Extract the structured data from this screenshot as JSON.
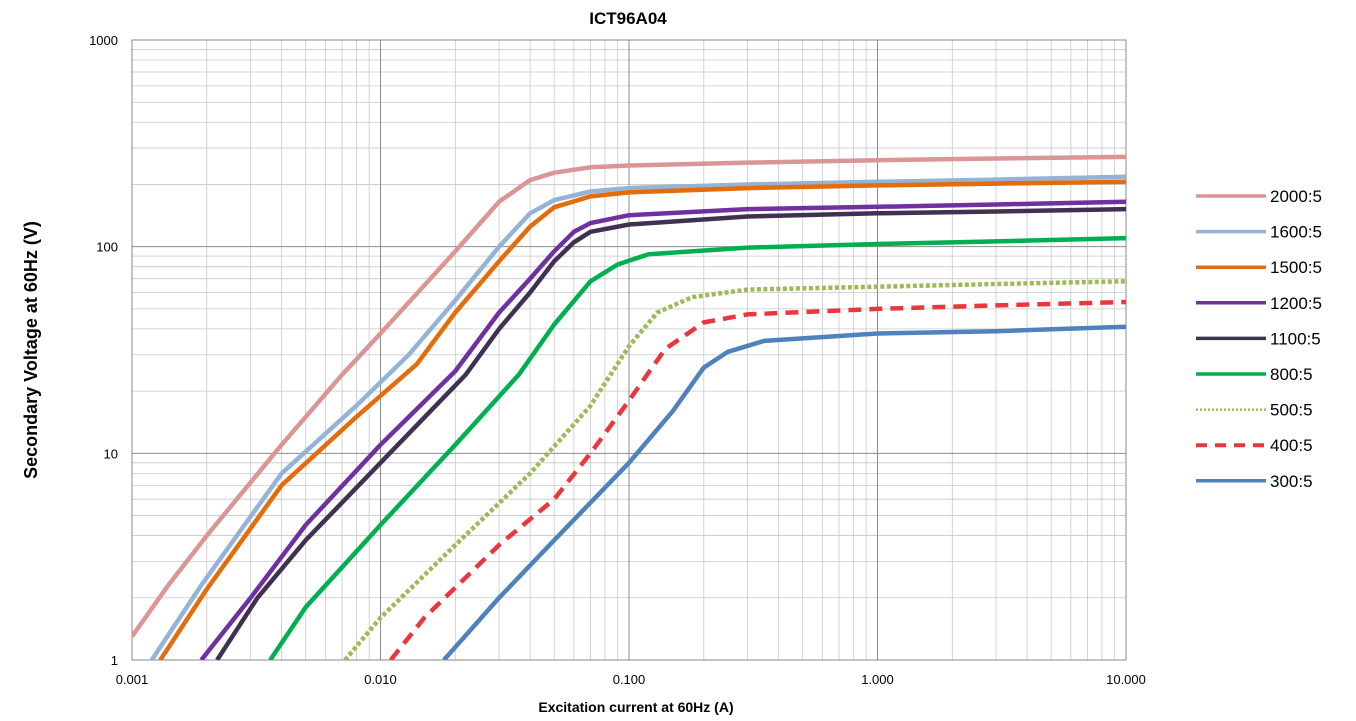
{
  "chart_data": {
    "type": "line",
    "title": "ICT96A04",
    "xlabel": "Excitation current at 60Hz (A)",
    "ylabel": "Secondary Voltage at 60Hz (V)",
    "x_scale": "log",
    "y_scale": "log",
    "xlim": [
      0.001,
      10
    ],
    "ylim": [
      1,
      1000
    ],
    "x_tick_labels": [
      "0.001",
      "0.010",
      "0.100",
      "1.000",
      "10.000"
    ],
    "x_tick_values": [
      0.001,
      0.01,
      0.1,
      1,
      10
    ],
    "y_tick_labels": [
      "1",
      "10",
      "100",
      "1000"
    ],
    "y_tick_values": [
      1,
      10,
      100,
      1000
    ],
    "grid": true,
    "legend_position": "right",
    "series": [
      {
        "name": "2000:5",
        "color": "#D99694",
        "dash": "solid",
        "points": [
          [
            0.001,
            1.3
          ],
          [
            0.0014,
            2.3
          ],
          [
            0.002,
            4.0
          ],
          [
            0.004,
            11
          ],
          [
            0.007,
            24
          ],
          [
            0.01,
            38
          ],
          [
            0.02,
            95
          ],
          [
            0.03,
            165
          ],
          [
            0.04,
            210
          ],
          [
            0.05,
            228
          ],
          [
            0.07,
            242
          ],
          [
            0.1,
            247
          ],
          [
            0.3,
            255
          ],
          [
            1,
            262
          ],
          [
            3,
            267
          ],
          [
            10,
            272
          ]
        ]
      },
      {
        "name": "1600:5",
        "color": "#95B3D7",
        "dash": "solid",
        "points": [
          [
            0.0012,
            1.0
          ],
          [
            0.0019,
            2.3
          ],
          [
            0.004,
            8
          ],
          [
            0.008,
            17
          ],
          [
            0.013,
            30
          ],
          [
            0.02,
            55
          ],
          [
            0.03,
            100
          ],
          [
            0.04,
            145
          ],
          [
            0.05,
            168
          ],
          [
            0.07,
            185
          ],
          [
            0.1,
            192
          ],
          [
            0.3,
            200
          ],
          [
            1,
            206
          ],
          [
            3,
            211
          ],
          [
            10,
            218
          ]
        ]
      },
      {
        "name": "1500:5",
        "color": "#E46C0A",
        "dash": "solid",
        "points": [
          [
            0.0013,
            1.0
          ],
          [
            0.002,
            2.2
          ],
          [
            0.004,
            7
          ],
          [
            0.008,
            15
          ],
          [
            0.014,
            27
          ],
          [
            0.02,
            48
          ],
          [
            0.03,
            85
          ],
          [
            0.04,
            125
          ],
          [
            0.05,
            155
          ],
          [
            0.07,
            175
          ],
          [
            0.1,
            183
          ],
          [
            0.3,
            192
          ],
          [
            1,
            198
          ],
          [
            3,
            202
          ],
          [
            10,
            206
          ]
        ]
      },
      {
        "name": "1200:5",
        "color": "#7030A0",
        "dash": "solid",
        "points": [
          [
            0.0019,
            1.0
          ],
          [
            0.003,
            2.0
          ],
          [
            0.005,
            4.5
          ],
          [
            0.01,
            11
          ],
          [
            0.02,
            25
          ],
          [
            0.03,
            48
          ],
          [
            0.04,
            70
          ],
          [
            0.05,
            95
          ],
          [
            0.06,
            118
          ],
          [
            0.07,
            130
          ],
          [
            0.1,
            142
          ],
          [
            0.3,
            152
          ],
          [
            1,
            156
          ],
          [
            3,
            160
          ],
          [
            10,
            165
          ]
        ]
      },
      {
        "name": "1100:5",
        "color": "#403151",
        "dash": "solid",
        "points": [
          [
            0.0022,
            1.0
          ],
          [
            0.0032,
            2.0
          ],
          [
            0.005,
            3.8
          ],
          [
            0.01,
            9
          ],
          [
            0.022,
            24
          ],
          [
            0.03,
            40
          ],
          [
            0.04,
            60
          ],
          [
            0.05,
            85
          ],
          [
            0.06,
            105
          ],
          [
            0.07,
            118
          ],
          [
            0.1,
            128
          ],
          [
            0.3,
            140
          ],
          [
            1,
            145
          ],
          [
            3,
            148
          ],
          [
            10,
            152
          ]
        ]
      },
      {
        "name": "800:5",
        "color": "#00B050",
        "dash": "solid",
        "points": [
          [
            0.0036,
            1.0
          ],
          [
            0.005,
            1.8
          ],
          [
            0.01,
            4.5
          ],
          [
            0.02,
            11
          ],
          [
            0.036,
            24
          ],
          [
            0.05,
            42
          ],
          [
            0.07,
            68
          ],
          [
            0.09,
            82
          ],
          [
            0.12,
            92
          ],
          [
            0.3,
            99
          ],
          [
            1,
            103
          ],
          [
            3,
            106
          ],
          [
            10,
            110
          ]
        ]
      },
      {
        "name": "500:5",
        "color": "#9BBB59",
        "dash": "dotted",
        "points": [
          [
            0.0072,
            1.0
          ],
          [
            0.01,
            1.6
          ],
          [
            0.02,
            3.6
          ],
          [
            0.04,
            8
          ],
          [
            0.07,
            17
          ],
          [
            0.1,
            33
          ],
          [
            0.13,
            48
          ],
          [
            0.18,
            57
          ],
          [
            0.3,
            62
          ],
          [
            1,
            64
          ],
          [
            3,
            66
          ],
          [
            10,
            68
          ]
        ]
      },
      {
        "name": "400:5",
        "color": "#E8383D",
        "dash": "dashed",
        "points": [
          [
            0.011,
            1.0
          ],
          [
            0.015,
            1.6
          ],
          [
            0.03,
            3.6
          ],
          [
            0.05,
            6
          ],
          [
            0.07,
            10
          ],
          [
            0.1,
            18
          ],
          [
            0.14,
            32
          ],
          [
            0.2,
            43
          ],
          [
            0.3,
            47
          ],
          [
            1,
            50
          ],
          [
            3,
            52
          ],
          [
            10,
            54
          ]
        ]
      },
      {
        "name": "300:5",
        "color": "#4F81BD",
        "dash": "solid",
        "points": [
          [
            0.018,
            1.0
          ],
          [
            0.03,
            2.0
          ],
          [
            0.05,
            3.8
          ],
          [
            0.1,
            9
          ],
          [
            0.15,
            16
          ],
          [
            0.2,
            26
          ],
          [
            0.25,
            31
          ],
          [
            0.35,
            35
          ],
          [
            1,
            38
          ],
          [
            3,
            39
          ],
          [
            10,
            41
          ]
        ]
      }
    ]
  }
}
